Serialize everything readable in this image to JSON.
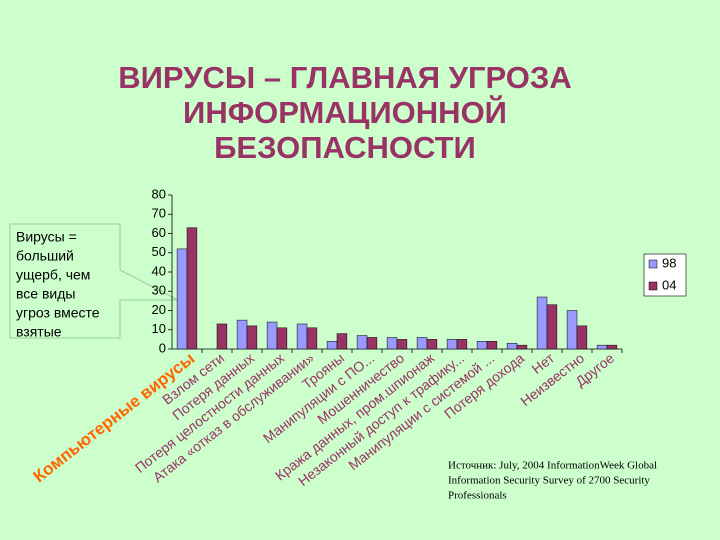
{
  "chart_data": {
    "type": "bar",
    "title": [
      "ВИРУСЫ – ГЛАВНАЯ УГРОЗА",
      "ИНФОРМАЦИОННОЙ",
      "БЕЗОПАСНОСТИ"
    ],
    "callout": [
      "Вирусы =",
      "больший",
      "ущерб, чем",
      "все виды",
      "угроз вместе",
      "взятые"
    ],
    "source": [
      "Источник: July, 2004 InformationWeek Global",
      "Information Security Survey of 2700 Security",
      "Professionals"
    ],
    "categories": [
      "Компьютерные вирусы",
      "Взлом сети",
      "Потеря данных",
      "Потеря целостности данных",
      "Атака «отказ в обслуживании»",
      "Трояны",
      "Манипуляции с ПО...",
      "Мошенничество",
      "Кража данных, пром.шпионаж",
      "Незаконный доступ к трафику...",
      "Манипуляции с системой ...",
      "Потеря дохода",
      "Нет",
      "Неизвестно",
      "Другое"
    ],
    "series": [
      {
        "name": "98",
        "color": "#9999ff",
        "values": [
          52,
          null,
          15,
          14,
          13,
          4,
          7,
          6,
          6,
          5,
          4,
          3,
          27,
          20,
          2
        ]
      },
      {
        "name": "04",
        "color": "#993366",
        "values": [
          63,
          13,
          12,
          11,
          11,
          8,
          6,
          5,
          5,
          5,
          4,
          2,
          23,
          12,
          2
        ]
      }
    ],
    "ylim": [
      0,
      80
    ],
    "yticks": [
      0,
      10,
      20,
      30,
      40,
      50,
      60,
      70,
      80
    ],
    "legend": "right"
  }
}
